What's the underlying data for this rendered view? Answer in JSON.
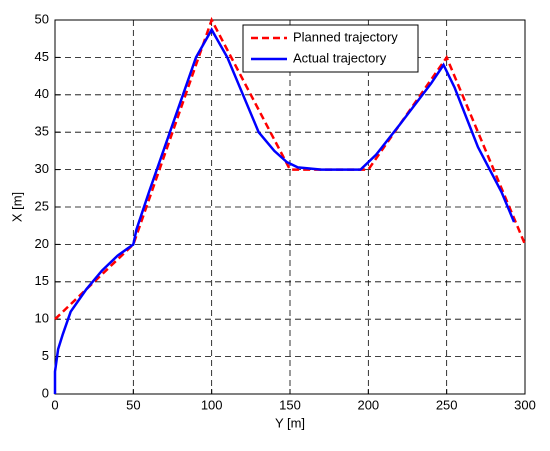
{
  "chart_data": {
    "type": "line",
    "xlabel": "Y [m]",
    "ylabel": "X [m]",
    "xlim": [
      0,
      300
    ],
    "ylim": [
      0,
      50
    ],
    "xticks": [
      0,
      50,
      100,
      150,
      200,
      250,
      300
    ],
    "yticks": [
      0,
      5,
      10,
      15,
      20,
      25,
      30,
      35,
      40,
      45,
      50
    ],
    "grid": true,
    "legend": "upper right",
    "series": [
      {
        "name": "Planned trajectory",
        "color": "#ff0000",
        "style": "dashed",
        "x": [
          0,
          50,
          100,
          150,
          200,
          250,
          300
        ],
        "values": [
          10,
          20,
          50,
          30,
          30,
          45,
          20
        ]
      },
      {
        "name": "Actual trajectory",
        "color": "#0000ff",
        "style": "solid",
        "x": [
          0,
          0,
          2,
          5,
          10,
          20,
          30,
          40,
          50,
          52,
          60,
          70,
          80,
          90,
          100,
          110,
          120,
          130,
          140,
          148,
          155,
          170,
          195,
          205,
          220,
          240,
          248,
          255,
          270,
          285,
          293
        ],
        "values": [
          0,
          3,
          6,
          8,
          11,
          14,
          16.5,
          18.5,
          20,
          22,
          27,
          33,
          39,
          45,
          48.7,
          45,
          40,
          35,
          32.5,
          31,
          30.3,
          30,
          30,
          32,
          36,
          41.5,
          44,
          41,
          33,
          27,
          23
        ]
      }
    ]
  }
}
